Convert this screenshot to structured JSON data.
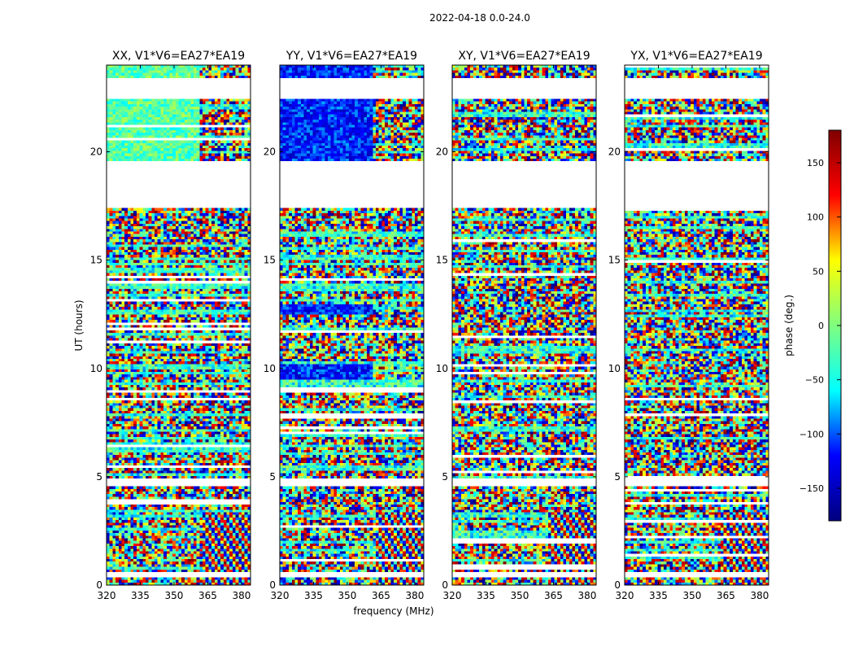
{
  "chart_data": {
    "type": "heatmap",
    "suptitle": "2022-04-18 0.0-24.0",
    "xlabel": "frequency (MHz)",
    "ylabel": "UT (hours)",
    "xlim": [
      320,
      384
    ],
    "ylim": [
      0,
      24
    ],
    "xticks": [
      "320",
      "335",
      "350",
      "365",
      "380"
    ],
    "yticks": [
      "0",
      "5",
      "10",
      "15",
      "20"
    ],
    "panels": [
      {
        "title": "XX, V1*V6=EA27*EA19",
        "pol": "XX"
      },
      {
        "title": "YY, V1*V6=EA27*EA19",
        "pol": "YY"
      },
      {
        "title": "XY, V1*V6=EA27*EA19",
        "pol": "XY"
      },
      {
        "title": "YX, V1*V6=EA27*EA19",
        "pol": "YX"
      }
    ],
    "colorbar": {
      "label": "phase (deg.)",
      "range": [
        -180,
        180
      ],
      "ticks": [
        "150",
        "100",
        "50",
        "0",
        "−50",
        "−100",
        "−150"
      ],
      "colormap": [
        "#00007f",
        "#0000ff",
        "#00ffff",
        "#7fff7f",
        "#ffff00",
        "#ff0000",
        "#7f0000"
      ]
    },
    "flagged_ut_ranges": [
      [
        0.4,
        0.65
      ],
      [
        4.6,
        4.95
      ],
      [
        17.4,
        19.5
      ],
      [
        22.4,
        23.0
      ],
      [
        23.0,
        23.4
      ]
    ]
  }
}
